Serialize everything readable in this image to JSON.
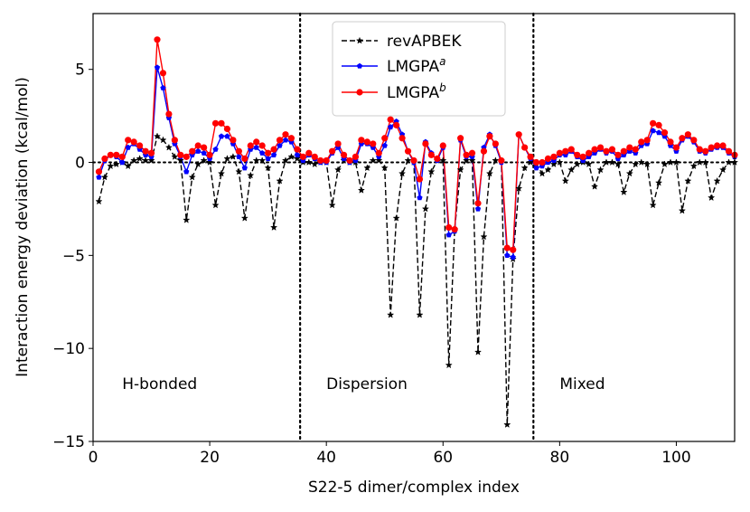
{
  "chart_data": {
    "type": "line",
    "title": "",
    "xlabel": "S22-5 dimer/complex index",
    "ylabel": "Interaction energy deviation (kcal/mol)",
    "xlim": [
      0,
      110
    ],
    "ylim": [
      -15,
      8
    ],
    "xticks": [
      0,
      20,
      40,
      60,
      80,
      100
    ],
    "xtick_labels": [
      "0",
      "20",
      "40",
      "60",
      "80",
      "100"
    ],
    "yticks": [
      -15,
      -10,
      -5,
      0,
      5
    ],
    "ytick_labels": [
      "−15",
      "−10",
      "−5",
      "0",
      "5"
    ],
    "region_dividers": [
      35.5,
      75.5
    ],
    "region_labels": [
      {
        "text": "H-bonded",
        "x": 5,
        "y": -11.9
      },
      {
        "text": "Dispersion",
        "x": 40,
        "y": -11.9
      },
      {
        "text": "Mixed",
        "x": 80,
        "y": -11.9
      }
    ],
    "zero_line": true,
    "legend": {
      "location": "upper-center",
      "entries": [
        {
          "base": "revAPBEK",
          "sup": ""
        },
        {
          "base": "LMGPA",
          "sup": "a"
        },
        {
          "base": "LMGPA",
          "sup": "b"
        }
      ]
    },
    "series": [
      {
        "name": "revAPBEK",
        "color": "#000000",
        "style": "dashed",
        "marker": "star",
        "x": [
          1,
          2,
          3,
          4,
          5,
          6,
          7,
          8,
          9,
          10,
          11,
          12,
          13,
          14,
          15,
          16,
          17,
          18,
          19,
          20,
          21,
          22,
          23,
          24,
          25,
          26,
          27,
          28,
          29,
          30,
          31,
          32,
          33,
          34,
          35,
          36,
          37,
          38,
          39,
          40,
          41,
          42,
          43,
          44,
          45,
          46,
          47,
          48,
          49,
          50,
          51,
          52,
          53,
          54,
          55,
          56,
          57,
          58,
          59,
          60,
          61,
          62,
          63,
          64,
          65,
          66,
          67,
          68,
          69,
          70,
          71,
          72,
          73,
          74,
          75,
          76,
          77,
          78,
          79,
          80,
          81,
          82,
          83,
          84,
          85,
          86,
          87,
          88,
          89,
          90,
          91,
          92,
          93,
          94,
          95,
          96,
          97,
          98,
          99,
          100,
          101,
          102,
          103,
          104,
          105,
          106,
          107,
          108,
          109,
          110
        ],
        "values": [
          -2.1,
          -0.8,
          -0.2,
          -0.1,
          0.0,
          -0.2,
          0.1,
          0.2,
          0.1,
          0.1,
          1.4,
          1.2,
          0.8,
          0.3,
          0.1,
          -3.1,
          -0.8,
          -0.1,
          0.1,
          0.0,
          -2.3,
          -0.6,
          0.2,
          0.3,
          -0.5,
          -3.0,
          -0.7,
          0.1,
          0.1,
          -0.3,
          -3.5,
          -1.0,
          0.1,
          0.3,
          0.2,
          0.0,
          0.0,
          -0.1,
          0.0,
          0.0,
          -2.3,
          -0.4,
          0.1,
          0.0,
          0.0,
          -1.5,
          -0.3,
          0.1,
          0.1,
          -0.3,
          -8.2,
          -3.0,
          -0.6,
          0.1,
          0.0,
          -8.2,
          -2.5,
          -0.5,
          0.1,
          0.1,
          -10.9,
          -3.6,
          -0.4,
          0.1,
          0.1,
          -10.2,
          -4.0,
          -0.6,
          0.1,
          0.1,
          -14.1,
          -5.2,
          -1.4,
          -0.3,
          0.0,
          -0.1,
          -0.6,
          -0.4,
          -0.1,
          0.0,
          -1.0,
          -0.4,
          -0.1,
          0.0,
          -0.1,
          -1.3,
          -0.4,
          0.0,
          0.0,
          -0.1,
          -1.6,
          -0.6,
          -0.1,
          0.0,
          -0.1,
          -2.3,
          -1.1,
          -0.1,
          0.0,
          0.0,
          -2.6,
          -1.0,
          -0.2,
          0.0,
          0.0,
          -1.9,
          -1.0,
          -0.4,
          0.0,
          0.0
        ]
      },
      {
        "name": "LMGPA a",
        "color": "#0000ff",
        "style": "solid",
        "marker": "pentagon",
        "x": [
          1,
          2,
          3,
          4,
          5,
          6,
          7,
          8,
          9,
          10,
          11,
          12,
          13,
          14,
          15,
          16,
          17,
          18,
          19,
          20,
          21,
          22,
          23,
          24,
          25,
          26,
          27,
          28,
          29,
          30,
          31,
          32,
          33,
          34,
          35,
          36,
          37,
          38,
          39,
          40,
          41,
          42,
          43,
          44,
          45,
          46,
          47,
          48,
          49,
          50,
          51,
          52,
          53,
          54,
          55,
          56,
          57,
          58,
          59,
          60,
          61,
          62,
          63,
          64,
          65,
          66,
          67,
          68,
          69,
          70,
          71,
          72,
          73,
          74,
          75,
          76,
          77,
          78,
          79,
          80,
          81,
          82,
          83,
          84,
          85,
          86,
          87,
          88,
          89,
          90,
          91,
          92,
          93,
          94,
          95,
          96,
          97,
          98,
          99,
          100,
          101,
          102,
          103,
          104,
          105,
          106,
          107,
          108,
          109,
          110
        ],
        "values": [
          -0.8,
          0.1,
          0.4,
          0.3,
          0.0,
          0.8,
          1.0,
          0.7,
          0.4,
          0.3,
          5.1,
          4.0,
          2.4,
          1.0,
          0.3,
          -0.5,
          0.4,
          0.6,
          0.5,
          0.2,
          0.7,
          1.4,
          1.4,
          1.0,
          0.3,
          -0.3,
          0.7,
          0.8,
          0.5,
          0.2,
          0.4,
          0.9,
          1.2,
          1.1,
          0.4,
          0.1,
          0.4,
          0.2,
          0.0,
          0.0,
          0.5,
          0.8,
          0.2,
          0.0,
          0.1,
          1.0,
          1.0,
          0.8,
          0.3,
          0.9,
          1.9,
          2.2,
          1.5,
          0.6,
          0.0,
          -1.9,
          1.1,
          0.5,
          0.1,
          0.8,
          -3.9,
          -3.7,
          1.2,
          0.3,
          0.3,
          -2.5,
          0.8,
          1.5,
          0.9,
          0.0,
          -5.0,
          -5.1,
          1.5,
          0.8,
          0.2,
          -0.3,
          -0.2,
          0.0,
          0.1,
          0.4,
          0.4,
          0.6,
          0.3,
          0.1,
          0.3,
          0.5,
          0.7,
          0.5,
          0.6,
          0.2,
          0.4,
          0.6,
          0.5,
          0.9,
          1.0,
          1.7,
          1.6,
          1.4,
          0.9,
          0.6,
          1.2,
          1.4,
          1.1,
          0.6,
          0.5,
          0.7,
          0.8,
          0.8,
          0.5,
          0.3
        ]
      },
      {
        "name": "LMGPA b",
        "color": "#ff0000",
        "style": "solid",
        "marker": "circle",
        "x": [
          1,
          2,
          3,
          4,
          5,
          6,
          7,
          8,
          9,
          10,
          11,
          12,
          13,
          14,
          15,
          16,
          17,
          18,
          19,
          20,
          21,
          22,
          23,
          24,
          25,
          26,
          27,
          28,
          29,
          30,
          31,
          32,
          33,
          34,
          35,
          36,
          37,
          38,
          39,
          40,
          41,
          42,
          43,
          44,
          45,
          46,
          47,
          48,
          49,
          50,
          51,
          52,
          53,
          54,
          55,
          56,
          57,
          58,
          59,
          60,
          61,
          62,
          63,
          64,
          65,
          66,
          67,
          68,
          69,
          70,
          71,
          72,
          73,
          74,
          75,
          76,
          77,
          78,
          79,
          80,
          81,
          82,
          83,
          84,
          85,
          86,
          87,
          88,
          89,
          90,
          91,
          92,
          93,
          94,
          95,
          96,
          97,
          98,
          99,
          100,
          101,
          102,
          103,
          104,
          105,
          106,
          107,
          108,
          109,
          110
        ],
        "values": [
          -0.5,
          0.2,
          0.4,
          0.4,
          0.3,
          1.2,
          1.1,
          0.9,
          0.6,
          0.5,
          6.6,
          4.8,
          2.6,
          1.2,
          0.4,
          0.3,
          0.6,
          0.9,
          0.8,
          0.4,
          2.1,
          2.1,
          1.8,
          1.2,
          0.6,
          0.2,
          0.9,
          1.1,
          0.9,
          0.5,
          0.7,
          1.2,
          1.5,
          1.3,
          0.7,
          0.3,
          0.5,
          0.3,
          0.1,
          0.1,
          0.6,
          1.0,
          0.4,
          0.1,
          0.3,
          1.2,
          1.1,
          1.0,
          0.5,
          1.3,
          2.3,
          2.0,
          1.3,
          0.6,
          0.1,
          -0.9,
          1.0,
          0.4,
          0.2,
          0.9,
          -3.5,
          -3.6,
          1.3,
          0.4,
          0.5,
          -2.2,
          0.6,
          1.4,
          1.0,
          0.1,
          -4.6,
          -4.7,
          1.5,
          0.8,
          0.3,
          0.0,
          0.0,
          0.2,
          0.3,
          0.5,
          0.6,
          0.7,
          0.4,
          0.3,
          0.5,
          0.7,
          0.8,
          0.6,
          0.7,
          0.4,
          0.6,
          0.8,
          0.7,
          1.1,
          1.2,
          2.1,
          2.0,
          1.6,
          1.1,
          0.8,
          1.3,
          1.5,
          1.2,
          0.7,
          0.6,
          0.8,
          0.9,
          0.9,
          0.6,
          0.4
        ]
      }
    ]
  }
}
